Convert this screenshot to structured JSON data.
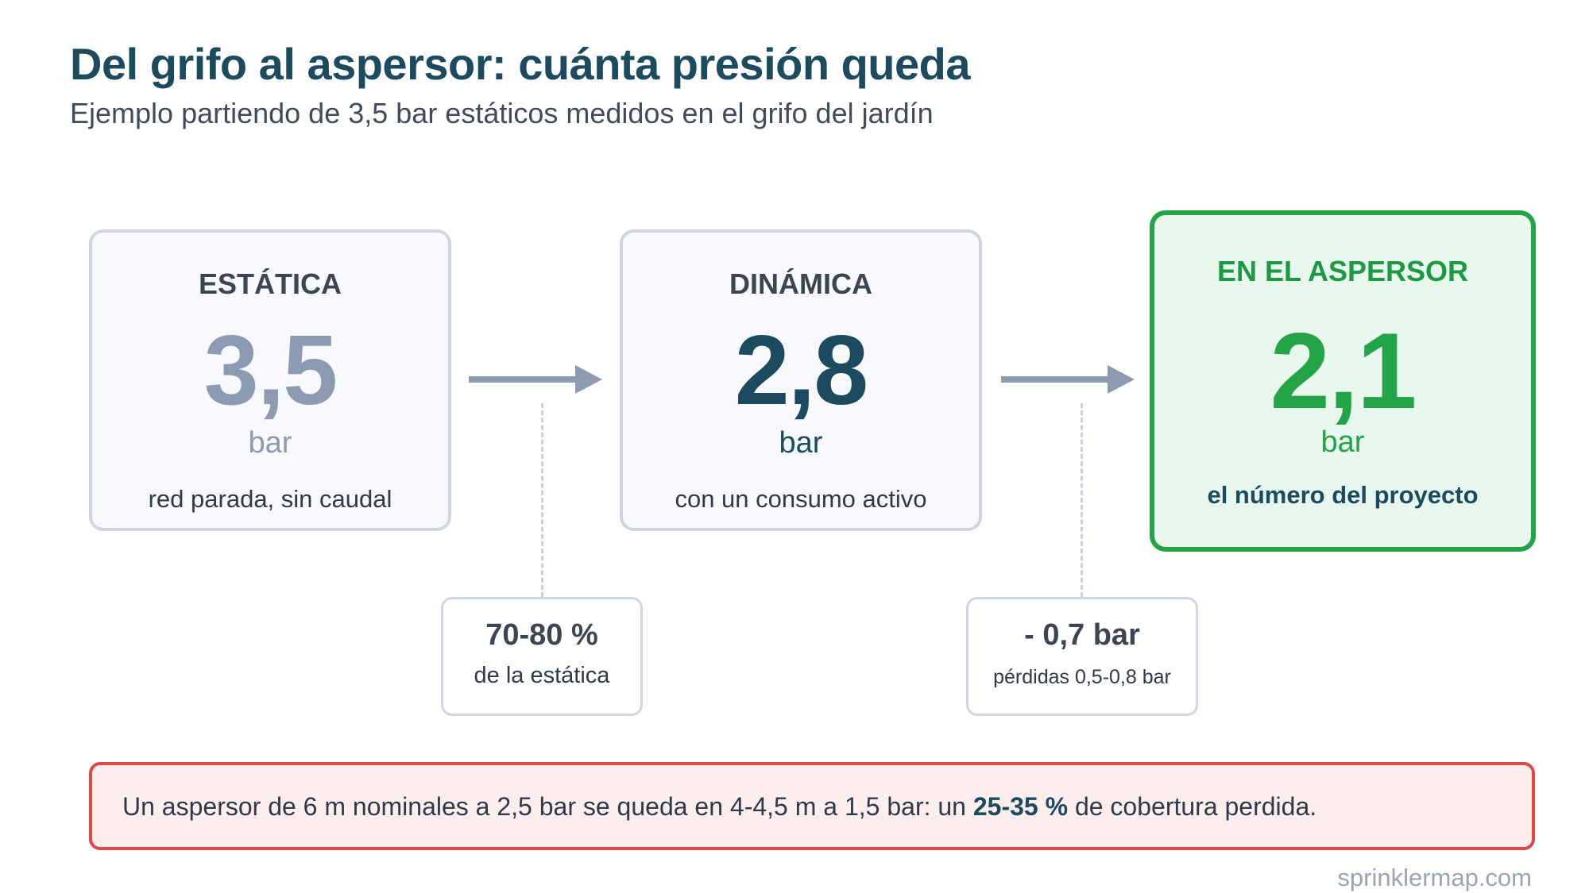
{
  "header": {
    "title": "Del grifo al aspersor: cuánta presión queda",
    "subtitle": "Ejemplo partiendo de 3,5 bar estáticos medidos en el grifo del jardín"
  },
  "stages": {
    "static": {
      "label": "ESTÁTICA",
      "value": "3,5",
      "unit": "bar",
      "description": "red parada, sin caudal"
    },
    "dynamic": {
      "label": "DINÁMICA",
      "value": "2,8",
      "unit": "bar",
      "description": "con un consumo activo"
    },
    "final": {
      "label": "EN EL ASPERSOR",
      "value": "2,1",
      "unit": "bar",
      "description": "el número del proyecto"
    }
  },
  "notes": {
    "ratio": {
      "value": "70-80 %",
      "caption": "de la estática"
    },
    "loss": {
      "value": "- 0,7 bar",
      "caption": "pérdidas 0,5-0,8 bar"
    }
  },
  "banner": {
    "text_before": "Un aspersor de 6 m nominales a 2,5 bar se queda en 4-4,5 m a 1,5 bar: un ",
    "highlight": "25-35 %",
    "text_after": " de cobertura perdida."
  },
  "source": "sprinklermap.com",
  "colors": {
    "title": "#1c4a5e",
    "static_value": "#8c9bb2",
    "final_accent": "#22a447",
    "final_background": "#e9f8ee",
    "warning_border": "#e04848",
    "warning_background": "#fdeeee",
    "arrow": "#8c9bb2"
  },
  "icons": {
    "arrows": "arrow-right-icon"
  }
}
